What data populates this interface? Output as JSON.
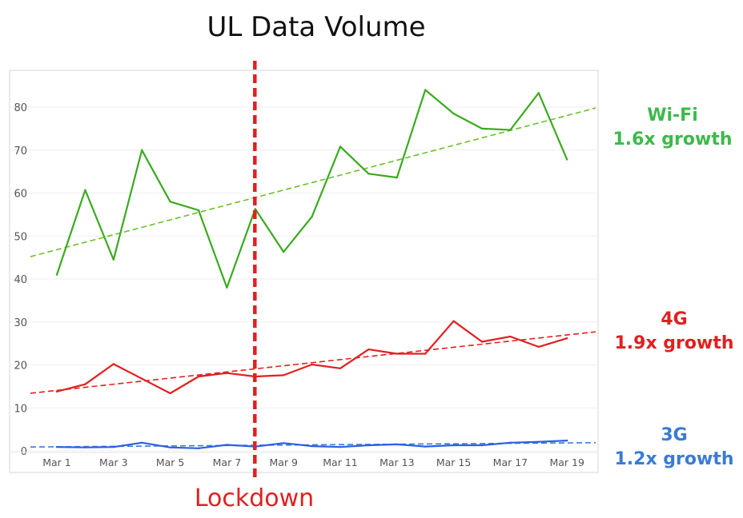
{
  "chart_data": {
    "type": "line",
    "title": "UL Data Volume",
    "xlabel": "",
    "ylabel": "",
    "ylim": [
      -2,
      90
    ],
    "yticks": [
      0,
      10,
      20,
      30,
      40,
      50,
      60,
      70,
      80
    ],
    "x": [
      "Mar 1",
      "Mar 2",
      "Mar 3",
      "Mar 4",
      "Mar 5",
      "Mar 6",
      "Mar 7",
      "Mar 8",
      "Mar 9",
      "Mar 10",
      "Mar 11",
      "Mar 12",
      "Mar 13",
      "Mar 14",
      "Mar 15",
      "Mar 16",
      "Mar 17",
      "Mar 18",
      "Mar 19"
    ],
    "xtick_labels": [
      "Mar 1",
      "Mar 3",
      "Mar 5",
      "Mar 7",
      "Mar 9",
      "Mar 11",
      "Mar 13",
      "Mar 15",
      "Mar 17",
      "Mar 19"
    ],
    "grid": true,
    "series": [
      {
        "name": "Wi-Fi",
        "color": "#3aaa1e",
        "trend_color": "#6cc12a",
        "values": [
          41.0,
          60.7,
          44.5,
          70.0,
          58.0,
          56.0,
          38.0,
          56.3,
          46.3,
          54.5,
          70.8,
          64.5,
          63.6,
          84.0,
          78.5,
          75.0,
          74.7,
          83.3,
          67.8
        ],
        "trend": [
          45.2,
          79.8
        ]
      },
      {
        "name": "4G",
        "color": "#e02020",
        "trend_color": "#e02020",
        "values": [
          13.8,
          15.5,
          20.2,
          16.8,
          13.4,
          17.3,
          18.1,
          17.3,
          17.6,
          20.1,
          19.2,
          23.6,
          22.6,
          22.6,
          30.2,
          25.4,
          26.6,
          24.2,
          26.2
        ],
        "trend": [
          13.4,
          27.7
        ]
      },
      {
        "name": "3G",
        "color": "#2f5fe0",
        "trend_color": "#3a7bd5",
        "values": [
          0.9,
          0.8,
          0.9,
          1.9,
          0.8,
          0.6,
          1.4,
          1.0,
          1.8,
          1.1,
          0.9,
          1.3,
          1.5,
          1.0,
          1.3,
          1.3,
          1.9,
          2.1,
          2.4
        ],
        "trend": [
          0.9,
          1.9
        ]
      }
    ],
    "annotations": {
      "lockdown": {
        "x_index": 7.0,
        "label": "Lockdown",
        "color": "#e02020"
      }
    }
  },
  "annotations": [
    {
      "key": "wifi",
      "name": "Wi-Fi",
      "growth": "1.6x growth",
      "color": "#3cba4a"
    },
    {
      "key": "lte",
      "name": "4G",
      "growth": "1.9x growth",
      "color": "#e02020"
    },
    {
      "key": "g3",
      "name": "3G",
      "growth": "1.2x growth",
      "color": "#3a7bd5"
    }
  ]
}
